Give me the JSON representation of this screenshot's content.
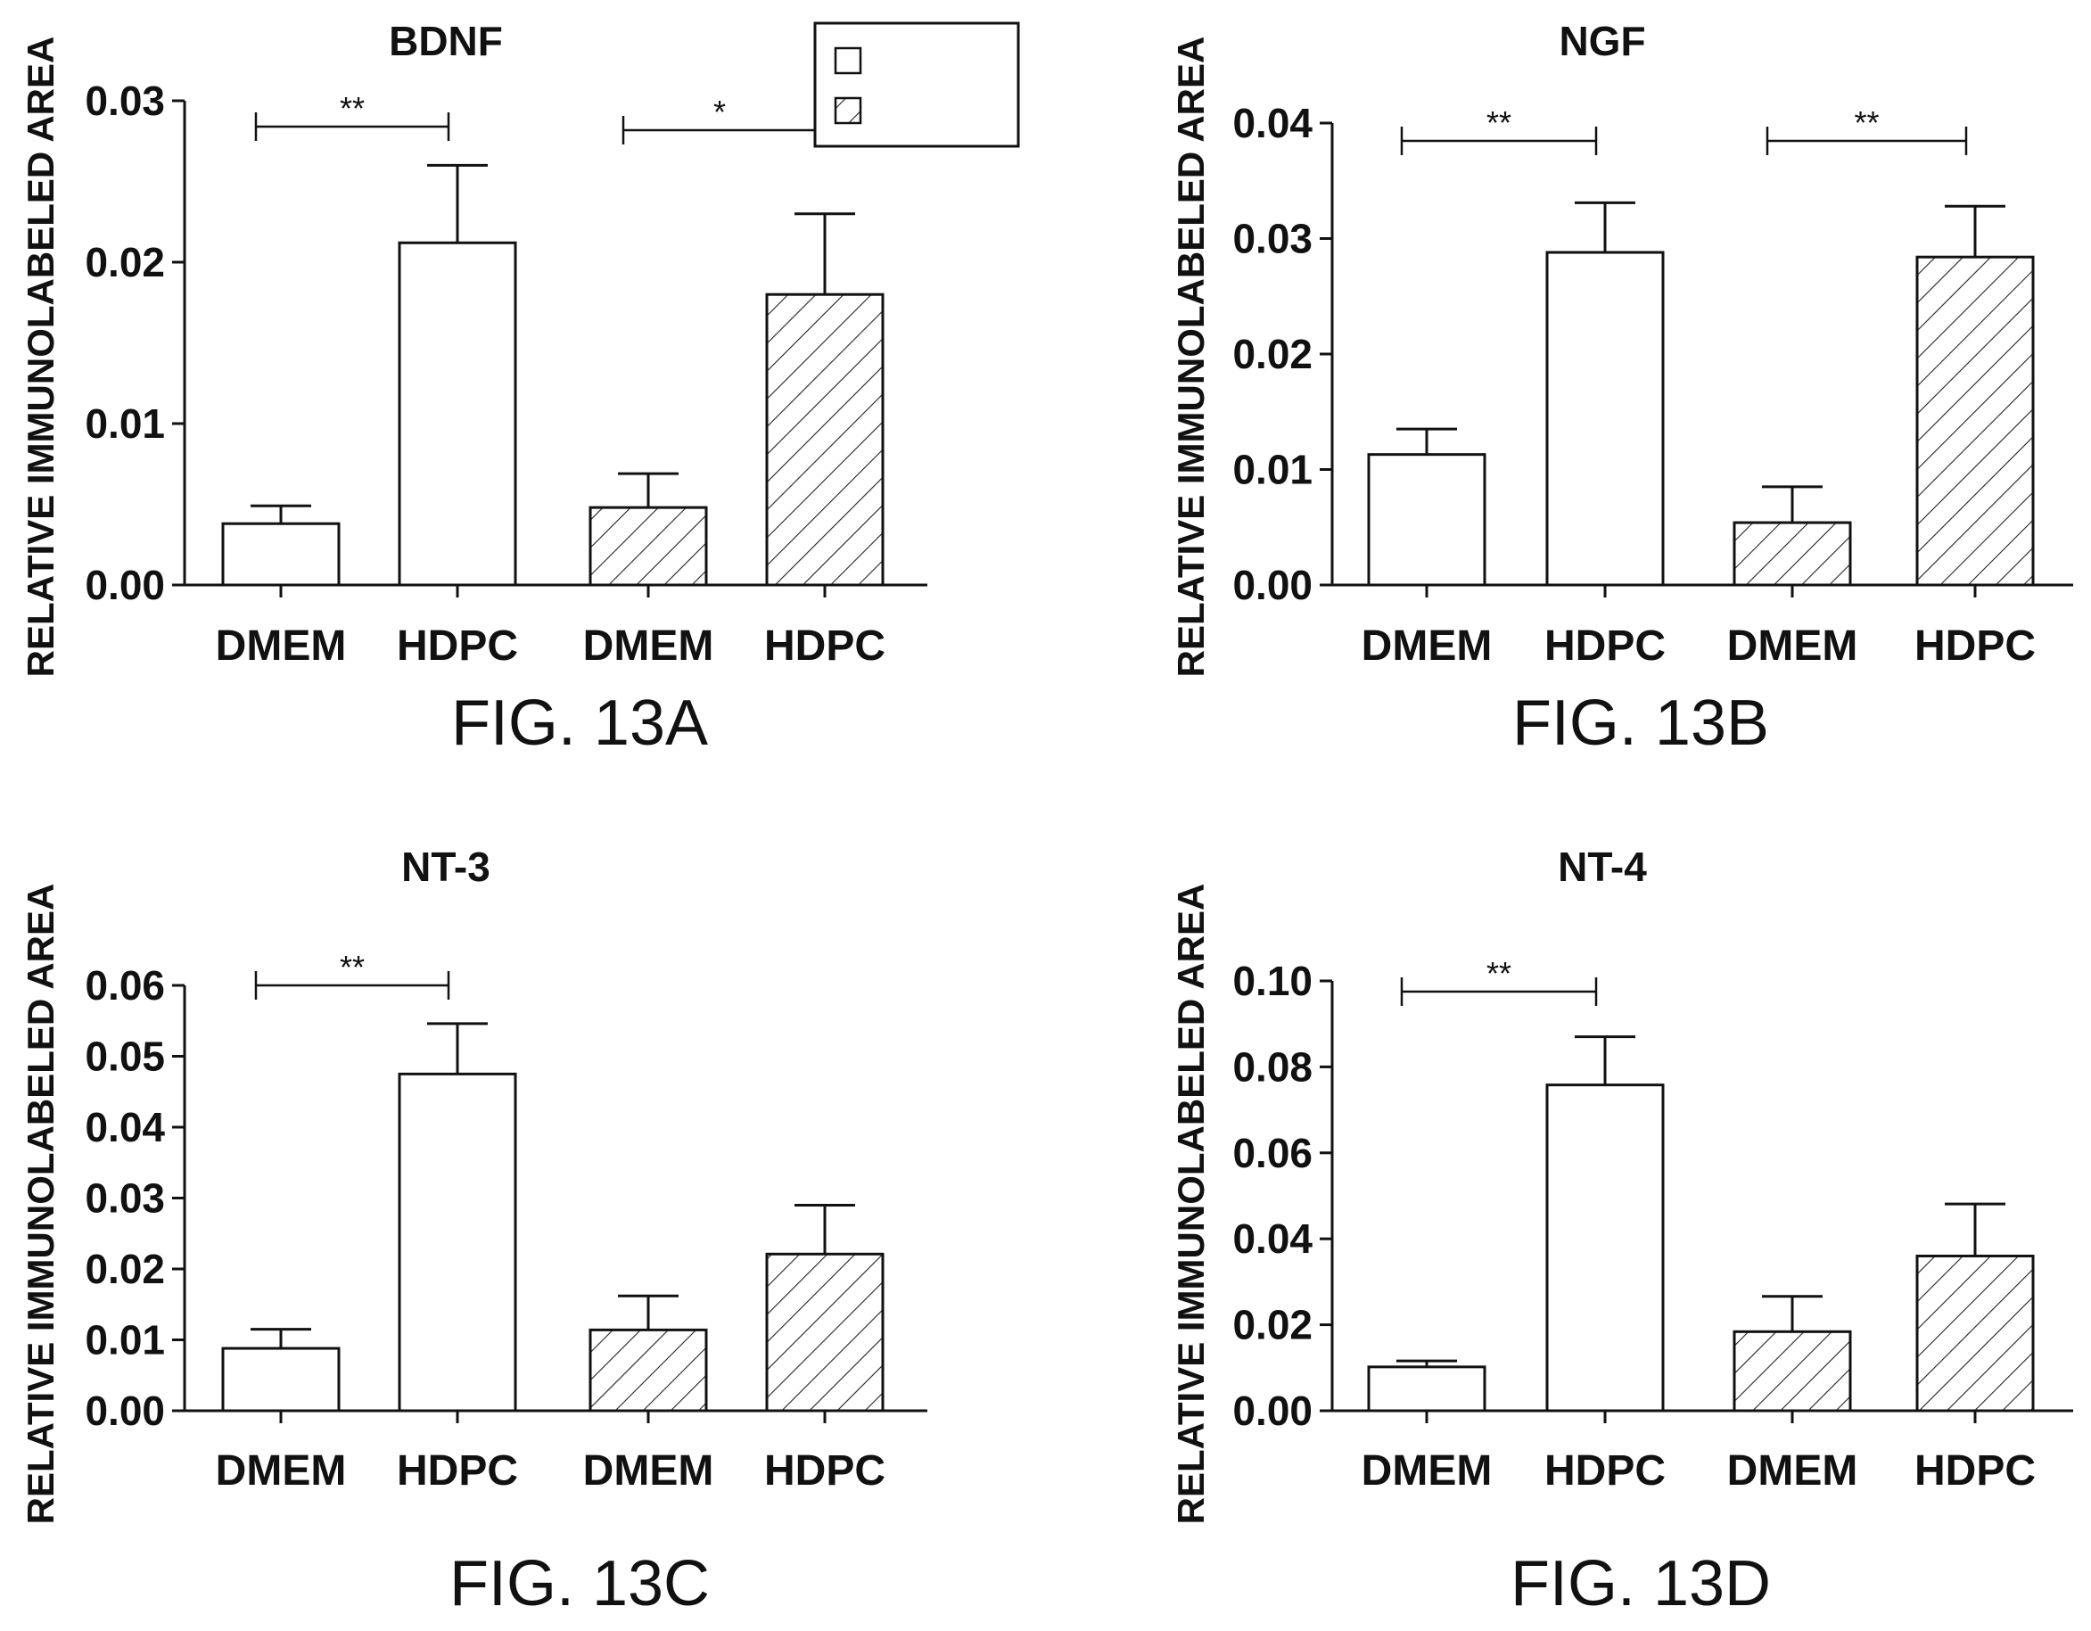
{
  "chart_data": [
    {
      "type": "bar",
      "title": "BDNF",
      "ylabel": "RELATIVE IMMUNOLABELED AREA",
      "categories": [
        "DMEM",
        "HDPC",
        "DMEM",
        "HDPC"
      ],
      "values": [
        0.0038,
        0.0212,
        0.0048,
        0.018
      ],
      "errors": [
        0.0011,
        0.0048,
        0.0021,
        0.005
      ],
      "patterns": [
        "open",
        "open",
        "hatched",
        "hatched"
      ],
      "ylim": [
        0,
        0.03
      ],
      "yticks": [
        "0.00",
        "0.01",
        "0.02",
        "0.03"
      ],
      "significance": [
        {
          "from": 0,
          "to": 1,
          "label": "**"
        },
        {
          "from": 2,
          "to": 3,
          "label": "*"
        }
      ],
      "caption": "FIG. 13A",
      "legend": {
        "position": "top-right",
        "entries": [
          {
            "pattern": "open",
            "label": ""
          },
          {
            "pattern": "hatched",
            "label": ""
          }
        ]
      }
    },
    {
      "type": "bar",
      "title": "NGF",
      "ylabel": "RELATIVE IMMUNOLABELED AREA",
      "categories": [
        "DMEM",
        "HDPC",
        "DMEM",
        "HDPC"
      ],
      "values": [
        0.0113,
        0.0288,
        0.0054,
        0.0284
      ],
      "errors": [
        0.0022,
        0.0043,
        0.0031,
        0.0044
      ],
      "patterns": [
        "open",
        "open",
        "hatched",
        "hatched"
      ],
      "ylim": [
        0,
        0.04
      ],
      "yticks": [
        "0.00",
        "0.01",
        "0.02",
        "0.03",
        "0.04"
      ],
      "significance": [
        {
          "from": 0,
          "to": 1,
          "label": "**"
        },
        {
          "from": 2,
          "to": 3,
          "label": "**"
        }
      ],
      "caption": "FIG. 13B"
    },
    {
      "type": "bar",
      "title": "NT-3",
      "ylabel": "RELATIVE IMMUNOLABELED AREA",
      "categories": [
        "DMEM",
        "HDPC",
        "DMEM",
        "HDPC"
      ],
      "values": [
        0.0088,
        0.0475,
        0.0114,
        0.0221
      ],
      "errors": [
        0.0027,
        0.0071,
        0.0048,
        0.0069
      ],
      "patterns": [
        "open",
        "open",
        "hatched",
        "hatched"
      ],
      "ylim": [
        0,
        0.06
      ],
      "yticks": [
        "0.00",
        "0.01",
        "0.02",
        "0.03",
        "0.04",
        "0.05",
        "0.06"
      ],
      "significance": [
        {
          "from": 0,
          "to": 1,
          "label": "**"
        }
      ],
      "caption": "FIG. 13C"
    },
    {
      "type": "bar",
      "title": "NT-4",
      "ylabel": "RELATIVE IMMUNOLABELED AREA",
      "categories": [
        "DMEM",
        "HDPC",
        "DMEM",
        "HDPC"
      ],
      "values": [
        0.0102,
        0.0758,
        0.0184,
        0.036
      ],
      "errors": [
        0.0014,
        0.0112,
        0.0082,
        0.0121
      ],
      "patterns": [
        "open",
        "open",
        "hatched",
        "hatched"
      ],
      "ylim": [
        0,
        0.1
      ],
      "yticks": [
        "0.00",
        "0.02",
        "0.04",
        "0.06",
        "0.08",
        "0.10"
      ],
      "significance": [
        {
          "from": 0,
          "to": 1,
          "label": "**"
        }
      ],
      "caption": "FIG. 13D"
    }
  ]
}
